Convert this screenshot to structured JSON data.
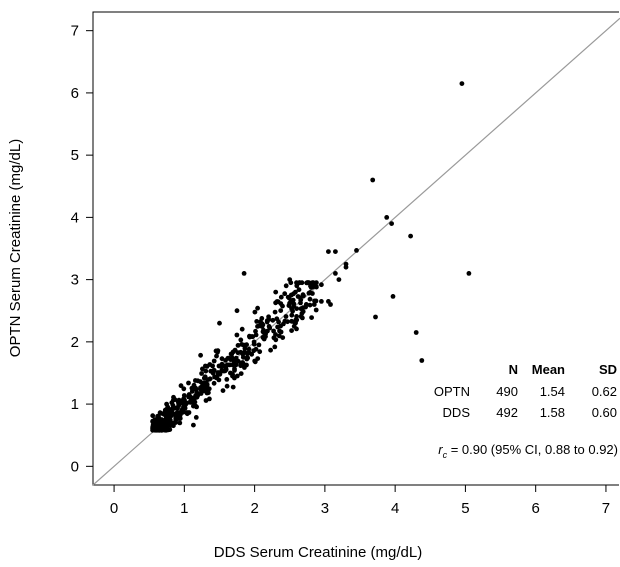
{
  "chart_data": {
    "type": "scatter",
    "title": "",
    "xlabel": "DDS Serum Creatinine (mg/dL)",
    "ylabel": "OPTN Serum Creatinine (mg/dL)",
    "xlim": [
      -0.3,
      7.2
    ],
    "ylim": [
      -0.3,
      7.3
    ],
    "xticks": [
      "0",
      "1",
      "2",
      "3",
      "4",
      "5",
      "6",
      "7"
    ],
    "yticks": [
      "0",
      "1",
      "2",
      "3",
      "4",
      "5",
      "6",
      "7"
    ],
    "reference_line": "identity (y = x)",
    "grid": false,
    "stats_table": {
      "headers": [
        "",
        "N",
        "Mean",
        "SD"
      ],
      "rows": [
        [
          "OPTN",
          "490",
          "1.54",
          "0.62"
        ],
        [
          "DDS",
          "492",
          "1.58",
          "0.60"
        ]
      ]
    },
    "annotation": {
      "symbol": "r",
      "subscript": "c",
      "text": " = 0.90 (95% CI, 0.88 to 0.92)"
    },
    "outliers": [
      [
        4.95,
        6.15
      ],
      [
        3.68,
        4.6
      ],
      [
        3.95,
        3.9
      ],
      [
        3.88,
        4.0
      ],
      [
        4.22,
        3.7
      ],
      [
        5.05,
        3.1
      ],
      [
        3.97,
        2.73
      ],
      [
        3.72,
        2.4
      ],
      [
        4.3,
        2.15
      ],
      [
        4.38,
        1.7
      ],
      [
        3.05,
        3.45
      ],
      [
        3.15,
        3.45
      ],
      [
        3.45,
        3.47
      ],
      [
        3.3,
        3.25
      ],
      [
        3.3,
        3.2
      ],
      [
        3.15,
        3.1
      ],
      [
        3.2,
        3.0
      ],
      [
        1.85,
        3.1
      ],
      [
        2.85,
        2.9
      ],
      [
        2.5,
        3.0
      ],
      [
        2.6,
        2.9
      ],
      [
        2.58,
        2.8
      ],
      [
        2.45,
        2.9
      ],
      [
        2.3,
        2.8
      ],
      [
        2.95,
        2.65
      ],
      [
        3.05,
        2.65
      ],
      [
        3.08,
        2.6
      ],
      [
        2.85,
        2.6
      ],
      [
        1.5,
        2.3
      ],
      [
        1.75,
        2.5
      ],
      [
        0.58,
        0.6
      ],
      [
        0.65,
        0.6
      ],
      [
        0.75,
        0.62
      ],
      [
        0.72,
        0.65
      ],
      [
        0.8,
        0.7
      ],
      [
        0.62,
        0.68
      ],
      [
        0.58,
        0.75
      ]
    ],
    "cluster": {
      "n_points": 450,
      "x_range": [
        0.6,
        2.9
      ],
      "y_range": [
        0.6,
        2.9
      ],
      "seed": 12345
    }
  }
}
